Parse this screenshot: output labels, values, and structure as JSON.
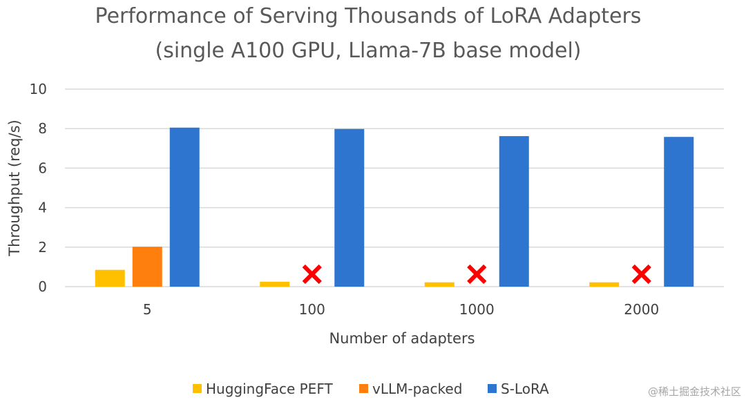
{
  "chart_data": {
    "type": "bar",
    "title": "Performance of Serving Thousands of LoRA Adapters",
    "subtitle": "(single A100 GPU, Llama-7B base model)",
    "xlabel": "Number of adapters",
    "ylabel": "Throughput (req/s)",
    "ylim": [
      0,
      10
    ],
    "yticks": [
      "0",
      "2",
      "4",
      "6",
      "8",
      "10"
    ],
    "grid": true,
    "legend_position": "bottom",
    "categories": [
      "5",
      "100",
      "1000",
      "2000"
    ],
    "series": [
      {
        "name": "HuggingFace PEFT",
        "color": "#ffc000",
        "values": [
          0.85,
          0.25,
          0.22,
          0.22
        ]
      },
      {
        "name": "vLLM-packed",
        "color": "#ff7f0e",
        "values": [
          2.02,
          null,
          null,
          null
        ]
      },
      {
        "name": "S-LoRA",
        "color": "#2e75cf",
        "values": [
          8.05,
          7.98,
          7.62,
          7.58
        ]
      }
    ],
    "annotations": [
      {
        "type": "x-mark",
        "series": "vLLM-packed",
        "category": "100",
        "color": "#ff0000"
      },
      {
        "type": "x-mark",
        "series": "vLLM-packed",
        "category": "1000",
        "color": "#ff0000"
      },
      {
        "type": "x-mark",
        "series": "vLLM-packed",
        "category": "2000",
        "color": "#ff0000"
      }
    ]
  },
  "watermark": "@稀土掘金技术社区"
}
